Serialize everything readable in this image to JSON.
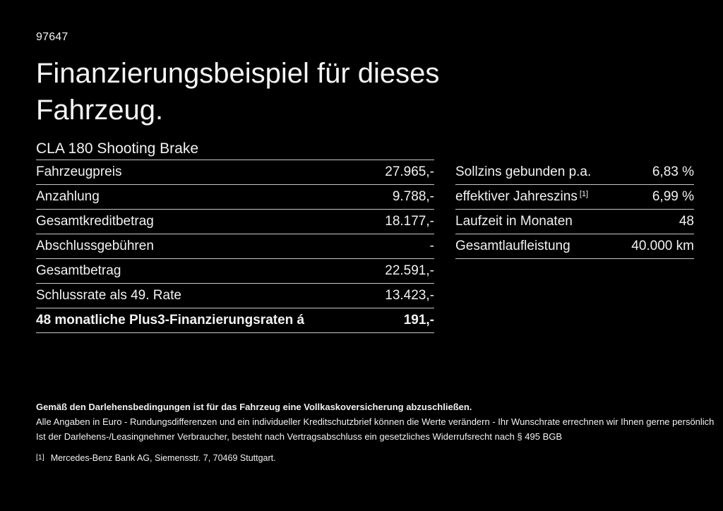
{
  "colors": {
    "background": "#000000",
    "text": "#f2f2f2",
    "divider": "#c8c8c8"
  },
  "header": {
    "vehicle_id": "97647",
    "title_line1": "Finanzierungsbeispiel für dieses",
    "title_line2": "Fahrzeug.",
    "subtitle": "CLA 180 Shooting Brake"
  },
  "finance_table": {
    "rows": [
      {
        "label": "Fahrzeugpreis",
        "value": "27.965,-"
      },
      {
        "label": "Anzahlung",
        "value": "9.788,-"
      },
      {
        "label": "Gesamtkreditbetrag",
        "value": "18.177,-"
      },
      {
        "label": "Abschlussgebühren",
        "value": "-"
      },
      {
        "label": "Gesamtbetrag",
        "value": "22.591,-"
      },
      {
        "label": "Schlussrate als 49. Rate",
        "value": "13.423,-"
      },
      {
        "label": "48 monatliche Plus3-Finanzierungsraten á",
        "value": "191,-"
      }
    ]
  },
  "conditions_table": {
    "rows": [
      {
        "label": "Sollzins gebunden p.a.",
        "value": "6,83 %"
      },
      {
        "label": "effektiver Jahreszins",
        "sup": "[1]",
        "value": "6,99 %"
      },
      {
        "label": "Laufzeit in Monaten",
        "value": "48"
      },
      {
        "label": "Gesamtlaufleistung",
        "value": "40.000 km"
      }
    ]
  },
  "footer": {
    "bold_note": "Gemäß den Darlehensbedingungen ist für das Fahrzeug eine Vollkaskoversicherung abzuschließen.",
    "note_line1": "Alle Angaben in Euro - Rundungsdifferenzen und ein individueller Kreditschutzbrief können die Werte verändern - Ihr Wunschrate errechnen wir Ihnen gerne persönlich",
    "note_line2": "Ist der Darlehens-/Leasingnehmer Verbraucher, besteht nach Vertragsabschluss ein gesetzliches Widerrufsrecht nach § 495 BGB",
    "footnote_marker": "[1]",
    "footnote_text": "Mercedes-Benz Bank AG, Siemensstr. 7, 70469 Stuttgart."
  }
}
